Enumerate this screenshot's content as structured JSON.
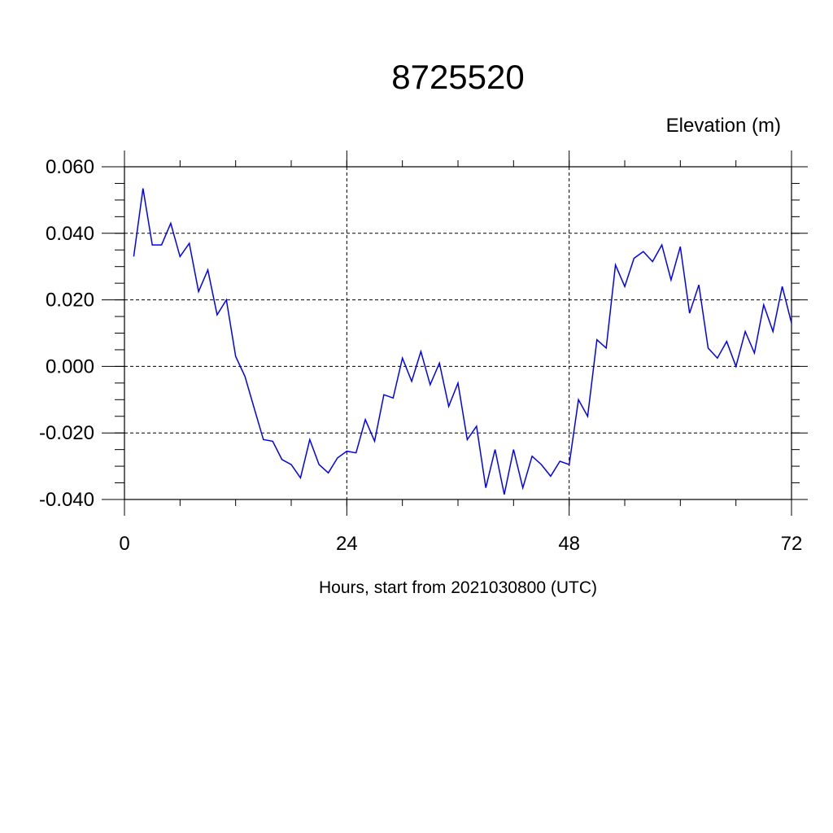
{
  "chart_data": {
    "type": "line",
    "title": "8725520",
    "units_label": "Elevation (m)",
    "xlabel": "Hours, start from 2021030800 (UTC)",
    "xlim": [
      0,
      72
    ],
    "ylim": [
      -0.04,
      0.06
    ],
    "x_ticks": [
      0,
      24,
      48,
      72
    ],
    "x_tick_labels": [
      "0",
      "24",
      "48",
      "72"
    ],
    "y_ticks": [
      -0.04,
      -0.02,
      0.0,
      0.02,
      0.04,
      0.06
    ],
    "y_tick_labels": [
      "-0.040",
      "-0.020",
      "0.000",
      "0.020",
      "0.040",
      "0.060"
    ],
    "grid": true,
    "series_color": "#0000ff",
    "series": [
      {
        "x": [
          1,
          2,
          3,
          4,
          5,
          6,
          7,
          8,
          9,
          10,
          11,
          12,
          13,
          14,
          15,
          16,
          17,
          18,
          19,
          20,
          21,
          22,
          23,
          24,
          25,
          26,
          27,
          28,
          29,
          30,
          31,
          32,
          33,
          34,
          35,
          36,
          37,
          38,
          39,
          40,
          41,
          42,
          43,
          44,
          45,
          46,
          47,
          48,
          49,
          50,
          51,
          52,
          53,
          54,
          55,
          56,
          57,
          58,
          59,
          60,
          61,
          62,
          63,
          64,
          65,
          66,
          67,
          68,
          69,
          70,
          71,
          72
        ],
        "values": [
          0.033,
          0.0535,
          0.0365,
          0.0365,
          0.043,
          0.033,
          0.037,
          0.0225,
          0.029,
          0.0155,
          0.02,
          0.003,
          -0.003,
          -0.0125,
          -0.022,
          -0.0225,
          -0.028,
          -0.0295,
          -0.0335,
          -0.022,
          -0.0295,
          -0.032,
          -0.0275,
          -0.0255,
          -0.026,
          -0.016,
          -0.0225,
          -0.0085,
          -0.0095,
          0.0025,
          -0.0045,
          0.0045,
          -0.0055,
          0.001,
          -0.012,
          -0.005,
          -0.022,
          -0.018,
          -0.0365,
          -0.025,
          -0.0385,
          -0.025,
          -0.0365,
          -0.027,
          -0.0295,
          -0.033,
          -0.0285,
          -0.0295,
          -0.01,
          -0.015,
          0.008,
          0.0055,
          0.0305,
          0.024,
          0.0325,
          0.0345,
          0.0315,
          0.0365,
          0.026,
          0.036,
          0.016,
          0.0245,
          0.0055,
          0.0025,
          0.0075,
          0.0,
          0.0105,
          0.004,
          0.0185,
          0.0105,
          0.024,
          0.013
        ]
      }
    ]
  }
}
